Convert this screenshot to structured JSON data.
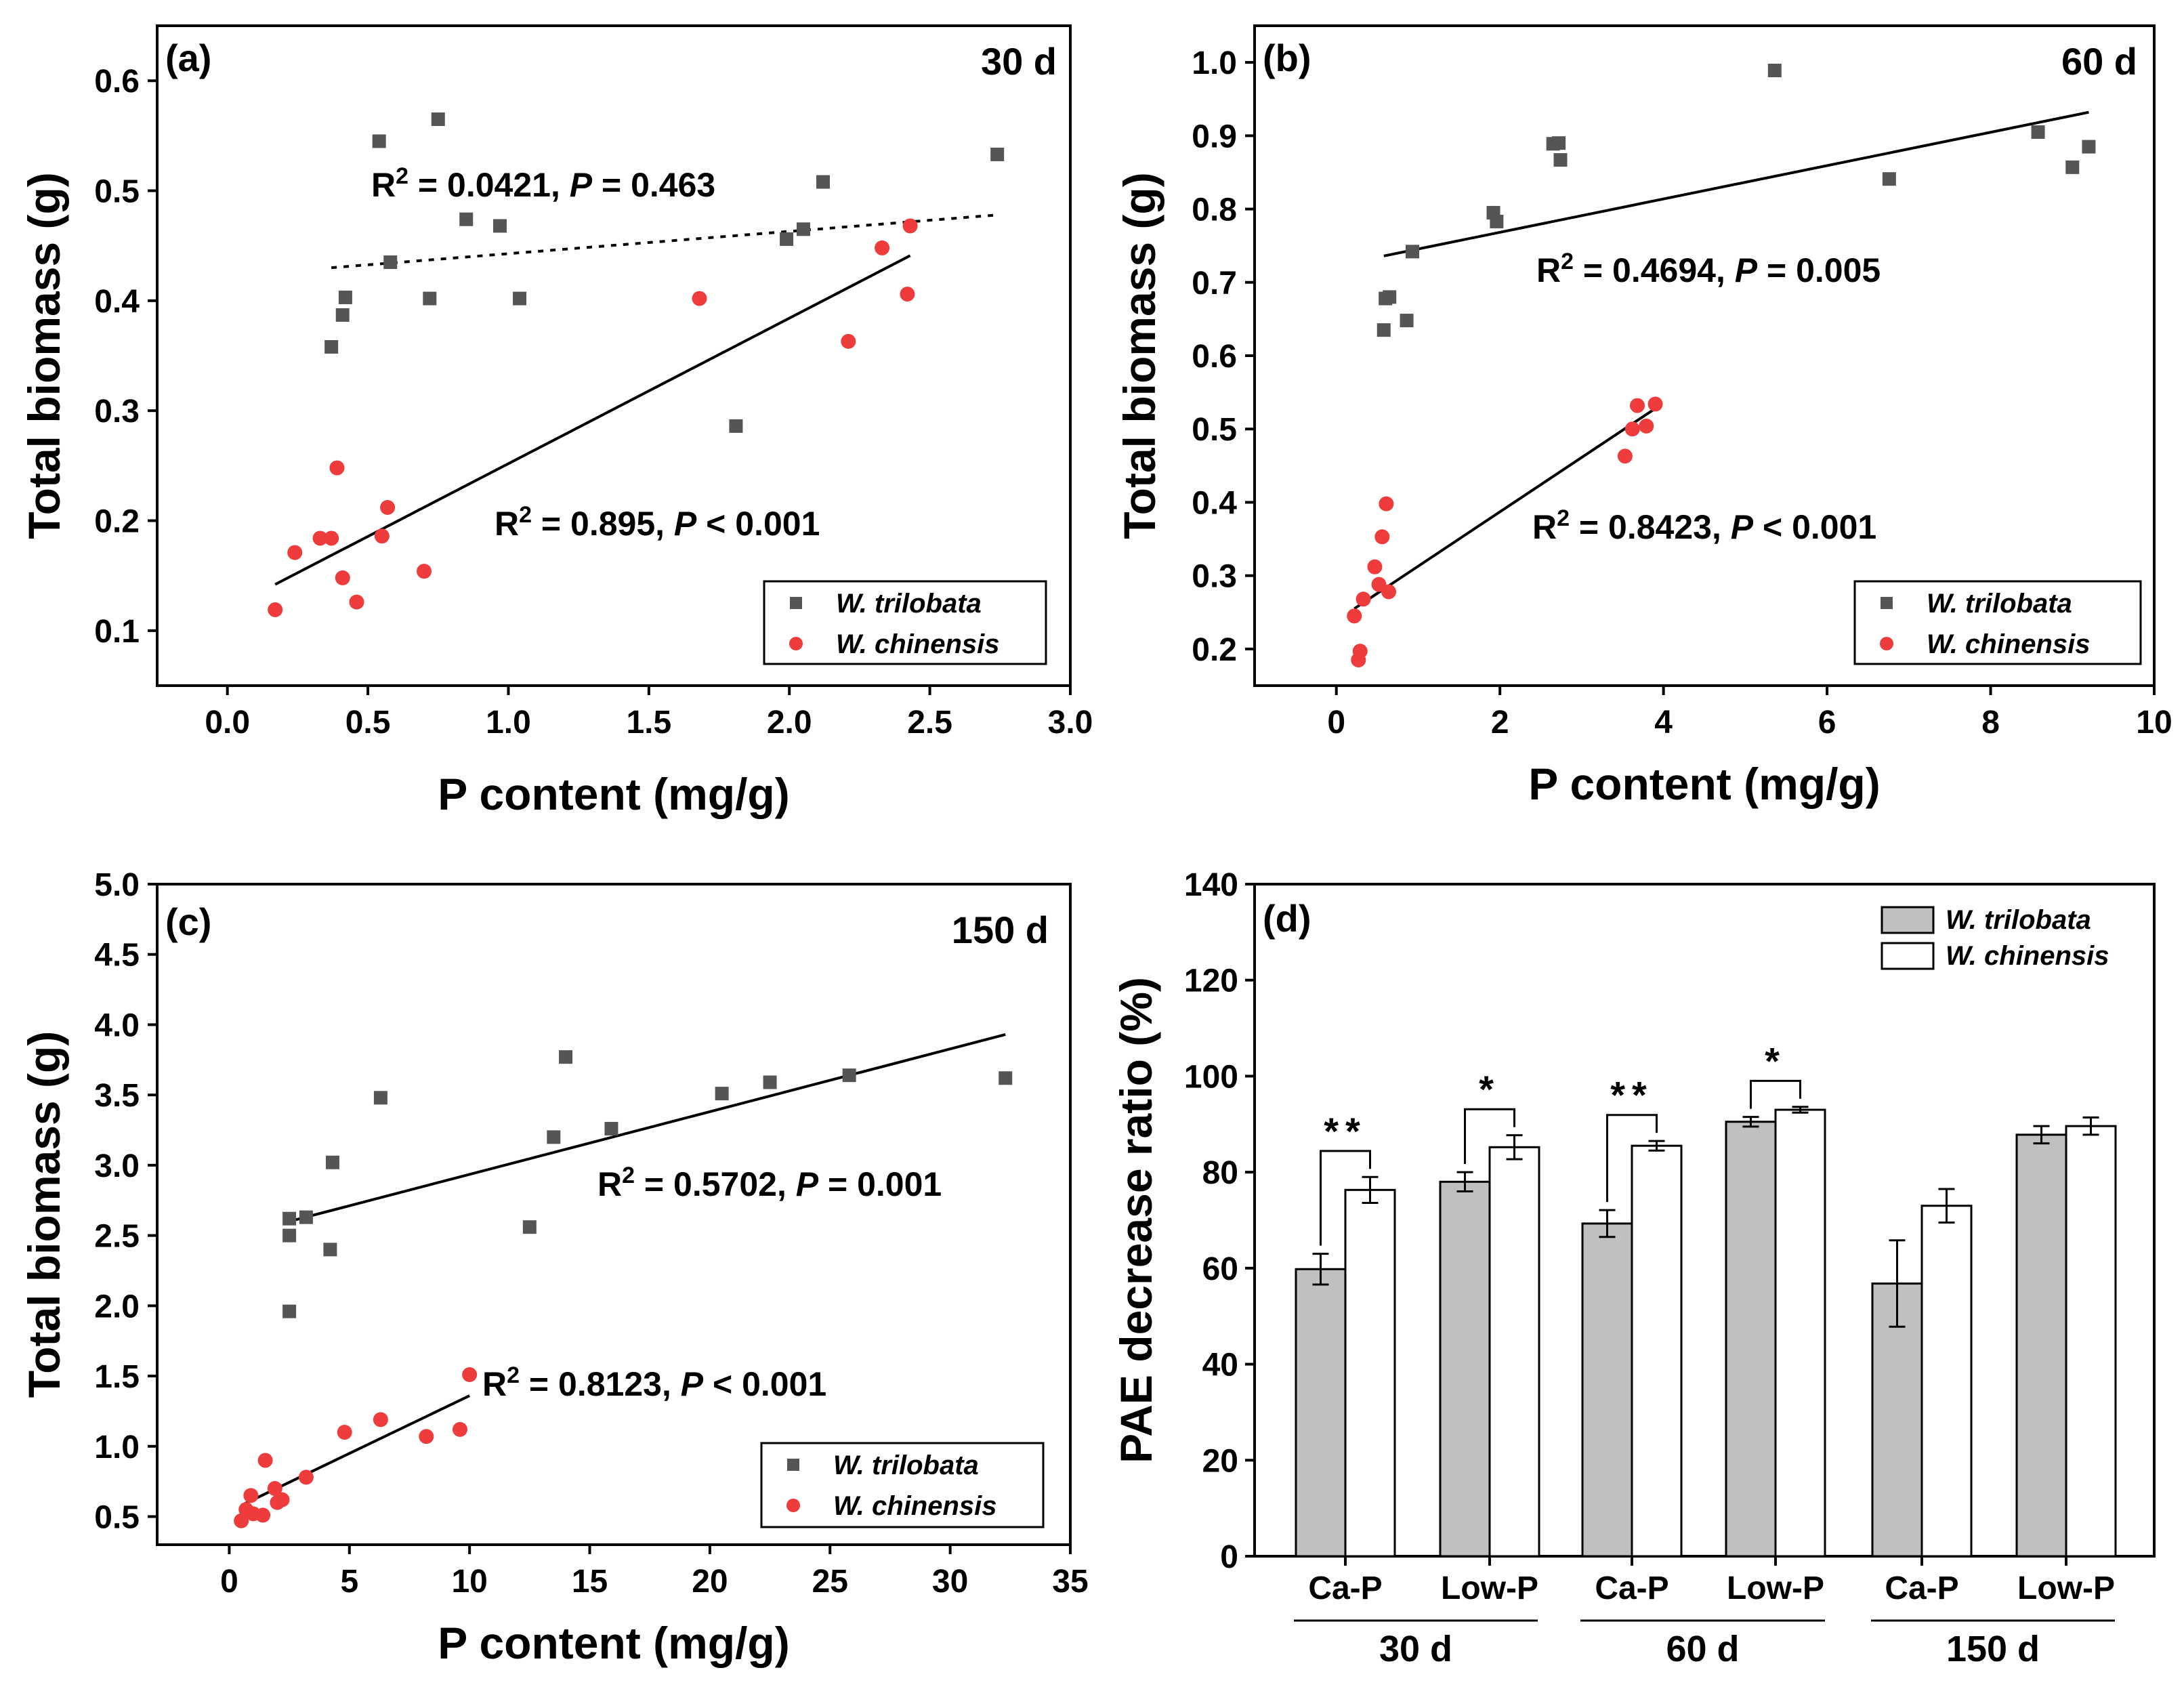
{
  "chart_data": [
    {
      "type": "scatter",
      "panel": "(a)",
      "duration": "30 d",
      "xlabel": "P content (mg/g)",
      "ylabel": "Total biomass (g)",
      "xlim": [
        -0.25,
        3.0
      ],
      "ylim": [
        0.05,
        0.65
      ],
      "xticks": [
        "0.0",
        "0.5",
        "1.0",
        "1.5",
        "2.0",
        "2.5",
        "3.0"
      ],
      "yticks": [
        "0.1",
        "0.2",
        "0.3",
        "0.4",
        "0.5",
        "0.6"
      ],
      "legend": {
        "position": "bottom-right",
        "entries": [
          "W. trilobata",
          "W. chinensis"
        ]
      },
      "series": [
        {
          "name": "W. trilobata",
          "marker": "square",
          "color": "#555555",
          "points": [
            [
              0.37,
              0.358
            ],
            [
              0.41,
              0.387
            ],
            [
              0.42,
              0.403
            ],
            [
              0.54,
              0.545
            ],
            [
              0.58,
              0.435
            ],
            [
              0.72,
              0.402
            ],
            [
              0.75,
              0.565
            ],
            [
              0.85,
              0.474
            ],
            [
              0.97,
              0.468
            ],
            [
              1.04,
              0.402
            ],
            [
              1.81,
              0.286
            ],
            [
              1.99,
              0.456
            ],
            [
              2.05,
              0.465
            ],
            [
              2.12,
              0.508
            ],
            [
              2.74,
              0.533
            ]
          ],
          "fit": {
            "x": [
              0.37,
              2.74
            ],
            "y": [
              0.43,
              0.478
            ],
            "style": "dotted"
          },
          "stats": {
            "r2_prefix": "R",
            "r2_eq": " = 0.0421, ",
            "p_label": "P",
            "p_value": " = 0.463"
          }
        },
        {
          "name": "W. chinensis",
          "marker": "circle",
          "color": "#ee3b3b",
          "points": [
            [
              0.17,
              0.119
            ],
            [
              0.24,
              0.171
            ],
            [
              0.33,
              0.184
            ],
            [
              0.37,
              0.184
            ],
            [
              0.39,
              0.248
            ],
            [
              0.41,
              0.148
            ],
            [
              0.46,
              0.126
            ],
            [
              0.55,
              0.186
            ],
            [
              0.57,
              0.212
            ],
            [
              0.7,
              0.154
            ],
            [
              1.68,
              0.402
            ],
            [
              2.21,
              0.363
            ],
            [
              2.33,
              0.448
            ],
            [
              2.42,
              0.406
            ],
            [
              2.43,
              0.468
            ]
          ],
          "fit": {
            "x": [
              0.17,
              2.43
            ],
            "y": [
              0.142,
              0.441
            ],
            "style": "solid"
          },
          "stats": {
            "r2_prefix": "R",
            "r2_eq": " = 0.895,  ",
            "p_label": "P",
            "p_value": " < 0.001"
          }
        }
      ]
    },
    {
      "type": "scatter",
      "panel": "(b)",
      "duration": "60 d",
      "xlabel": "P content (mg/g)",
      "ylabel": "Total biomass (g)",
      "xlim": [
        -1,
        10
      ],
      "ylim": [
        0.15,
        1.05
      ],
      "xticks": [
        "0",
        "2",
        "4",
        "6",
        "8",
        "10"
      ],
      "yticks": [
        "0.2",
        "0.3",
        "0.4",
        "0.5",
        "0.6",
        "0.7",
        "0.8",
        "0.9",
        "1.0"
      ],
      "legend": {
        "position": "bottom-right",
        "entries": [
          "W. trilobata",
          "W. chinensis"
        ]
      },
      "series": [
        {
          "name": "W. trilobata",
          "marker": "square",
          "color": "#555555",
          "points": [
            [
              0.58,
              0.635
            ],
            [
              0.6,
              0.678
            ],
            [
              0.65,
              0.68
            ],
            [
              0.86,
              0.648
            ],
            [
              0.93,
              0.742
            ],
            [
              1.92,
              0.795
            ],
            [
              1.96,
              0.783
            ],
            [
              2.65,
              0.889
            ],
            [
              2.72,
              0.89
            ],
            [
              2.74,
              0.867
            ],
            [
              5.36,
              0.989
            ],
            [
              6.76,
              0.841
            ],
            [
              8.58,
              0.905
            ],
            [
              9.0,
              0.857
            ],
            [
              9.2,
              0.885
            ]
          ],
          "fit": {
            "x": [
              0.58,
              9.2
            ],
            "y": [
              0.736,
              0.932
            ],
            "style": "solid"
          },
          "stats": {
            "r2_prefix": "R",
            "r2_eq": " = 0.4694, ",
            "p_label": "P",
            "p_value": " = 0.005"
          }
        },
        {
          "name": "W. chinensis",
          "marker": "circle",
          "color": "#ee3b3b",
          "points": [
            [
              0.22,
              0.245
            ],
            [
              0.27,
              0.185
            ],
            [
              0.29,
              0.197
            ],
            [
              0.33,
              0.268
            ],
            [
              0.47,
              0.312
            ],
            [
              0.52,
              0.288
            ],
            [
              0.56,
              0.353
            ],
            [
              0.61,
              0.398
            ],
            [
              0.64,
              0.278
            ],
            [
              3.53,
              0.463
            ],
            [
              3.62,
              0.5
            ],
            [
              3.68,
              0.532
            ],
            [
              3.79,
              0.504
            ],
            [
              3.9,
              0.534
            ]
          ],
          "fit": {
            "x": [
              0.22,
              3.9
            ],
            "y": [
              0.255,
              0.528
            ],
            "style": "solid"
          },
          "stats": {
            "r2_prefix": "R",
            "r2_eq": " = 0.8423,  ",
            "p_label": "P",
            "p_value": " < 0.001"
          }
        }
      ]
    },
    {
      "type": "scatter",
      "panel": "(c)",
      "duration": "150 d",
      "xlabel": "P content (mg/g)",
      "ylabel": "Total biomass (g)",
      "xlim": [
        -3,
        35
      ],
      "ylim": [
        0.3,
        5.0
      ],
      "xticks": [
        "0",
        "5",
        "10",
        "15",
        "20",
        "25",
        "30",
        "35"
      ],
      "yticks": [
        "0.5",
        "1.0",
        "1.5",
        "2.0",
        "2.5",
        "3.0",
        "3.5",
        "4.0",
        "4.5",
        "5.0"
      ],
      "legend": {
        "position": "bottom-right",
        "entries": [
          "W. trilobata",
          "W. chinensis"
        ]
      },
      "series": [
        {
          "name": "W. trilobata",
          "marker": "square",
          "color": "#555555",
          "points": [
            [
              2.5,
              1.96
            ],
            [
              2.5,
              2.5
            ],
            [
              2.5,
              2.62
            ],
            [
              3.2,
              2.63
            ],
            [
              4.2,
              2.4
            ],
            [
              4.3,
              3.02
            ],
            [
              6.3,
              3.48
            ],
            [
              12.5,
              2.56
            ],
            [
              13.5,
              3.2
            ],
            [
              14.0,
              3.77
            ],
            [
              15.9,
              3.26
            ],
            [
              20.5,
              3.51
            ],
            [
              22.5,
              3.59
            ],
            [
              25.8,
              3.64
            ],
            [
              32.3,
              3.62
            ]
          ],
          "fit": {
            "x": [
              2.5,
              32.3
            ],
            "y": [
              2.6,
              3.93
            ],
            "style": "solid"
          },
          "stats": {
            "r2_prefix": "R",
            "r2_eq": " = 0.5702, ",
            "p_label": "P",
            "p_value": " = 0.001"
          }
        },
        {
          "name": "W. chinensis",
          "marker": "circle",
          "color": "#ee3b3b",
          "points": [
            [
              0.5,
              0.47
            ],
            [
              0.7,
              0.55
            ],
            [
              0.9,
              0.65
            ],
            [
              1.0,
              0.52
            ],
            [
              1.4,
              0.51
            ],
            [
              1.5,
              0.9
            ],
            [
              1.9,
              0.7
            ],
            [
              2.0,
              0.6
            ],
            [
              2.2,
              0.62
            ],
            [
              3.2,
              0.78
            ],
            [
              4.8,
              1.1
            ],
            [
              6.3,
              1.19
            ],
            [
              8.2,
              1.07
            ],
            [
              9.6,
              1.12
            ],
            [
              10.0,
              1.51
            ]
          ],
          "fit": {
            "x": [
              0.5,
              10.0
            ],
            "y": [
              0.58,
              1.36
            ],
            "style": "solid"
          },
          "stats": {
            "r2_prefix": "R",
            "r2_eq": " = 0.8123,  ",
            "p_label": "P",
            "p_value": " < 0.001"
          }
        }
      ]
    },
    {
      "type": "bar",
      "panel": "(d)",
      "ylabel": "PAE decrease ratio (%)",
      "ylim": [
        0,
        140
      ],
      "yticks": [
        "0",
        "20",
        "40",
        "60",
        "80",
        "100",
        "120",
        "140"
      ],
      "categories": [
        "Ca-P",
        "Low-P",
        "Ca-P",
        "Low-P",
        "Ca-P",
        "Low-P"
      ],
      "groups": [
        "30 d",
        "60 d",
        "150 d"
      ],
      "legend": {
        "position": "top-right",
        "entries": [
          "W. trilobata",
          "W. chinensis"
        ]
      },
      "series": [
        {
          "name": "W. trilobata",
          "fill": "#c0c0c0",
          "values": [
            59.8,
            78.0,
            69.3,
            90.5,
            56.8,
            87.8
          ],
          "errors": [
            3.2,
            2.0,
            2.8,
            1.0,
            9.0,
            1.8
          ]
        },
        {
          "name": "W. chinensis",
          "fill": "#ffffff",
          "values": [
            76.3,
            85.2,
            85.5,
            93.0,
            73.0,
            89.6
          ],
          "errors": [
            2.7,
            2.5,
            1.0,
            0.6,
            3.5,
            1.8
          ]
        }
      ],
      "significance": [
        "**",
        "*",
        "**",
        "*",
        "",
        ""
      ]
    }
  ]
}
